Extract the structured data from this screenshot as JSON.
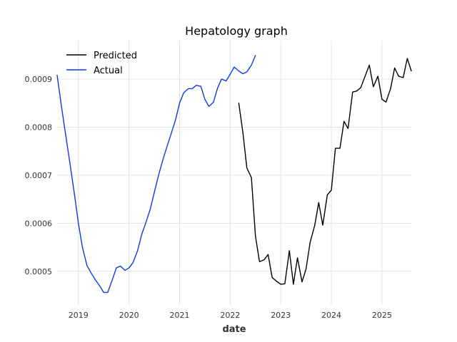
{
  "chart_data": {
    "type": "line",
    "title": "Hepatology graph",
    "xlabel": "date",
    "ylabel": "",
    "xlim": [
      2018.58,
      2025.58
    ],
    "ylim": [
      0.00043,
      0.00098
    ],
    "grid": true,
    "legend": "top-left",
    "x_ticks": [
      2019,
      2020,
      2021,
      2022,
      2023,
      2024,
      2025
    ],
    "x_tick_labels": [
      "2019",
      "2020",
      "2021",
      "2022",
      "2023",
      "2024",
      "2025"
    ],
    "y_ticks": [
      0.0005,
      0.0006,
      0.0007,
      0.0008,
      0.0009
    ],
    "y_tick_labels": [
      "0.0005",
      "0.0006",
      "0.0007",
      "0.0008",
      "0.0009"
    ],
    "series": [
      {
        "name": "Predicted",
        "color": "#000000",
        "x": [
          2022.17,
          2022.25,
          2022.33,
          2022.42,
          2022.5,
          2022.58,
          2022.67,
          2022.75,
          2022.83,
          2022.92,
          2023.0,
          2023.08,
          2023.17,
          2023.25,
          2023.33,
          2023.42,
          2023.5,
          2023.58,
          2023.67,
          2023.75,
          2023.83,
          2023.92,
          2024.0,
          2024.08,
          2024.17,
          2024.25,
          2024.33,
          2024.42,
          2024.5,
          2024.58,
          2024.67,
          2024.75,
          2024.83,
          2024.92,
          2025.0,
          2025.08,
          2025.17,
          2025.25,
          2025.33,
          2025.42,
          2025.5,
          2025.58
        ],
        "y": [
          0.00085,
          0.00079,
          0.000715,
          0.000695,
          0.000573,
          0.00052,
          0.000524,
          0.000535,
          0.000487,
          0.000479,
          0.000473,
          0.000474,
          0.000543,
          0.000473,
          0.000528,
          0.000478,
          0.000505,
          0.00056,
          0.000595,
          0.000643,
          0.000596,
          0.000659,
          0.000669,
          0.000756,
          0.000756,
          0.000812,
          0.000797,
          0.000873,
          0.000875,
          0.000882,
          0.000907,
          0.000929,
          0.000884,
          0.000906,
          0.000858,
          0.000852,
          0.00088,
          0.000923,
          0.000906,
          0.000903,
          0.000943,
          0.000917
        ]
      },
      {
        "name": "Actual",
        "color": "#0b3be8",
        "x": [
          2018.58,
          2018.67,
          2018.75,
          2018.83,
          2018.92,
          2019.0,
          2019.08,
          2019.17,
          2019.25,
          2019.33,
          2019.42,
          2019.5,
          2019.58,
          2019.67,
          2019.75,
          2019.83,
          2019.92,
          2020.0,
          2020.08,
          2020.17,
          2020.25,
          2020.33,
          2020.42,
          2020.5,
          2020.58,
          2020.67,
          2020.75,
          2020.83,
          2020.92,
          2021.0,
          2021.08,
          2021.17,
          2021.25,
          2021.33,
          2021.42,
          2021.5,
          2021.58,
          2021.67,
          2021.75,
          2021.83,
          2021.92,
          2022.0,
          2022.08,
          2022.17,
          2022.25,
          2022.33,
          2022.42,
          2022.5
        ],
        "y": [
          0.000908,
          0.00084,
          0.000783,
          0.000727,
          0.000662,
          0.0006,
          0.00055,
          0.000512,
          0.000497,
          0.000483,
          0.00047,
          0.000456,
          0.000456,
          0.000482,
          0.000507,
          0.000511,
          0.000502,
          0.000507,
          0.000518,
          0.000543,
          0.000576,
          0.0006,
          0.000629,
          0.000664,
          0.000698,
          0.000732,
          0.000759,
          0.000785,
          0.000815,
          0.00085,
          0.000871,
          0.00088,
          0.00088,
          0.000887,
          0.000885,
          0.000858,
          0.000843,
          0.000852,
          0.000881,
          0.0009,
          0.000896,
          0.00091,
          0.000925,
          0.000917,
          0.000911,
          0.000915,
          0.000929,
          0.000949
        ]
      }
    ]
  }
}
